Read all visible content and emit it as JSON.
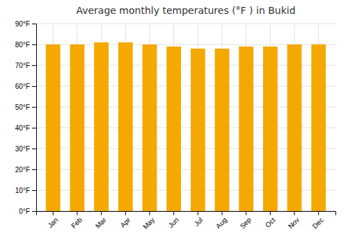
{
  "chart_data": {
    "type": "bar",
    "title": "Average monthly temperatures (°F ) in Bukid",
    "categories": [
      "Jan",
      "Feb",
      "Mar",
      "Apr",
      "May",
      "Jun",
      "Jul",
      "Aug",
      "Sep",
      "Oct",
      "Nov",
      "Dec"
    ],
    "values": [
      80,
      80,
      81,
      81,
      80,
      79,
      78,
      78,
      79,
      79,
      80,
      80
    ],
    "color": "#F5A800",
    "ylim": [
      0,
      90
    ],
    "yticks": [
      {
        "value": 0,
        "label": "0°F"
      },
      {
        "value": 10,
        "label": "10°F"
      },
      {
        "value": 20,
        "label": "20°F"
      },
      {
        "value": 30,
        "label": "30°F"
      },
      {
        "value": 40,
        "label": "40°F"
      },
      {
        "value": 50,
        "label": "50°F"
      },
      {
        "value": 60,
        "label": "60°F"
      },
      {
        "value": 70,
        "label": "70°F"
      },
      {
        "value": 80,
        "label": "80°F"
      },
      {
        "value": 90,
        "label": "90°F"
      }
    ],
    "grid": true
  }
}
